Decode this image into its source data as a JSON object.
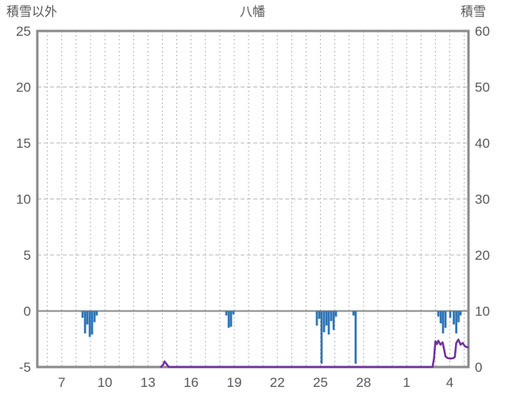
{
  "header": {
    "left_label": "積雪以外",
    "title": "八幡",
    "right_label": "積雪"
  },
  "colors": {
    "bar": "#2e75b6",
    "line": "#7030a0",
    "text": "#595959",
    "border": "#8a8a8a",
    "zero_line": "#8a8a8a",
    "grid": "#b8b8b8",
    "background": "#ffffff"
  },
  "chart_data": {
    "type": "bar+line",
    "title": "八幡",
    "x_axis": {
      "range": [
        5.3,
        35.3
      ],
      "gridline_step": 1,
      "ticks": [
        {
          "label": "7",
          "x": 7
        },
        {
          "label": "10",
          "x": 10
        },
        {
          "label": "13",
          "x": 13
        },
        {
          "label": "16",
          "x": 16
        },
        {
          "label": "19",
          "x": 19
        },
        {
          "label": "22",
          "x": 22
        },
        {
          "label": "25",
          "x": 25
        },
        {
          "label": "28",
          "x": 28
        },
        {
          "label": "1",
          "x": 31
        },
        {
          "label": "4",
          "x": 34
        }
      ]
    },
    "left_axis": {
      "label": "積雪以外",
      "min": -5,
      "max": 25,
      "ticks": [
        25,
        20,
        15,
        10,
        5,
        0,
        -5
      ],
      "zero_line": 0
    },
    "right_axis": {
      "label": "積雪",
      "min": 0,
      "max": 60,
      "ticks": [
        60,
        50,
        40,
        30,
        20,
        10,
        0
      ]
    },
    "bars": {
      "axis": "left",
      "width_days": 0.15,
      "points": [
        [
          8.45,
          -0.6
        ],
        [
          8.62,
          -2.0
        ],
        [
          8.78,
          -1.2
        ],
        [
          8.95,
          -2.3
        ],
        [
          9.11,
          -2.1
        ],
        [
          9.28,
          -1.0
        ],
        [
          9.44,
          -0.4
        ],
        [
          18.45,
          -0.4
        ],
        [
          18.62,
          -1.5
        ],
        [
          18.78,
          -1.4
        ],
        [
          18.95,
          -0.3
        ],
        [
          24.75,
          -1.3
        ],
        [
          24.92,
          -0.7
        ],
        [
          25.08,
          -4.7
        ],
        [
          25.25,
          -1.9
        ],
        [
          25.42,
          -1.3
        ],
        [
          25.58,
          -2.1
        ],
        [
          25.75,
          -0.9
        ],
        [
          25.92,
          -1.7
        ],
        [
          26.08,
          -0.5
        ],
        [
          27.3,
          -0.4
        ],
        [
          27.45,
          -4.7
        ],
        [
          33.2,
          -0.5
        ],
        [
          33.37,
          -1.1
        ],
        [
          33.53,
          -2.0
        ],
        [
          33.7,
          -1.5
        ],
        [
          34.03,
          -0.6
        ],
        [
          34.28,
          -1.2
        ],
        [
          34.45,
          -2.0
        ],
        [
          34.61,
          -1.0
        ],
        [
          34.75,
          -0.4
        ]
      ]
    },
    "line": {
      "axis": "right",
      "points": [
        [
          13.9,
          0
        ],
        [
          14.05,
          0.4
        ],
        [
          14.15,
          1.0
        ],
        [
          14.3,
          0.5
        ],
        [
          14.45,
          0
        ],
        [
          32.8,
          0
        ],
        [
          32.9,
          1.5
        ],
        [
          33.0,
          4.6
        ],
        [
          33.1,
          4.1
        ],
        [
          33.2,
          4.7
        ],
        [
          33.35,
          4.0
        ],
        [
          33.5,
          4.4
        ],
        [
          33.6,
          3.2
        ],
        [
          33.7,
          1.9
        ],
        [
          33.85,
          1.6
        ],
        [
          34.05,
          1.5
        ],
        [
          34.25,
          1.6
        ],
        [
          34.35,
          1.8
        ],
        [
          34.45,
          4.3
        ],
        [
          34.6,
          4.9
        ],
        [
          34.75,
          4.0
        ],
        [
          34.9,
          4.3
        ],
        [
          35.05,
          3.7
        ],
        [
          35.25,
          3.5
        ]
      ]
    }
  }
}
